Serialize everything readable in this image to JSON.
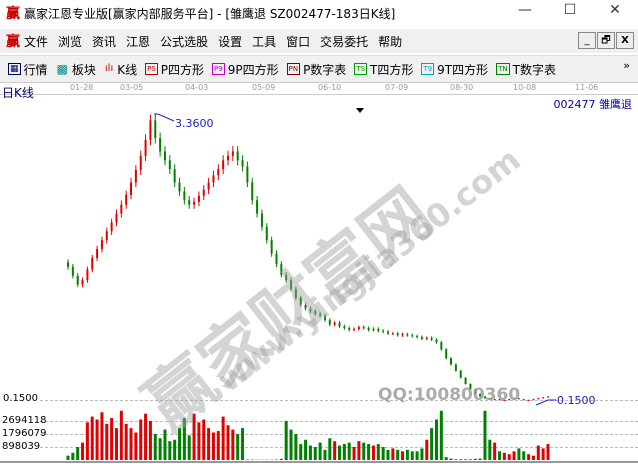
{
  "window": {
    "title": "赢家江恩专业版[赢家内部服务平台] - [雏鹰退  SZ002477-183日K线]",
    "logo": "赢",
    "minimize": "—",
    "maximize": "☐",
    "close": "✕"
  },
  "menu": {
    "items": [
      "文件",
      "浏览",
      "资讯",
      "江恩",
      "公式选股",
      "设置",
      "工具",
      "窗口",
      "交易委托",
      "帮助"
    ],
    "mdi": [
      "_",
      "🗗",
      "X"
    ]
  },
  "toolbar": {
    "items": [
      {
        "icon": "grid",
        "label": "行情"
      },
      {
        "icon": "blocks",
        "label": "板块"
      },
      {
        "icon": "kline",
        "label": "K线"
      },
      {
        "icon": "PS",
        "label": "P四方形",
        "color": "#c00000"
      },
      {
        "icon": "P9",
        "label": "9P四方形",
        "color": "#c000c0"
      },
      {
        "icon": "PN",
        "label": "P数字表",
        "color": "#800000"
      },
      {
        "icon": "TS",
        "label": "T四方形",
        "color": "#00a000"
      },
      {
        "icon": "T9",
        "label": "9T四方形",
        "color": "#00a0c0"
      },
      {
        "icon": "TN",
        "label": "T数字表",
        "color": "#008000"
      }
    ],
    "more": "»"
  },
  "chart": {
    "period_label": "日K线",
    "stock_label": "002477  雏鹰退",
    "dates": [
      "01-28",
      "03-05",
      "04-03",
      "05-09",
      "06-10",
      "07-09",
      "08-30",
      "10-08",
      "11-06"
    ],
    "high_label": "3.3600",
    "low_label": "0.1500",
    "price_axis_label": "0.1500",
    "volume_ticks": [
      "2694118",
      "1796079",
      "898039"
    ],
    "watermark": {
      "main": "赢家财富网",
      "url": "www.yingjia360.com",
      "qq": "QQ:100800360"
    },
    "colors": {
      "up": "#e00000",
      "down": "#008000",
      "label": "#2020c0"
    }
  },
  "chart_data": {
    "type": "candlestick",
    "closes": [
      1.65,
      1.55,
      1.45,
      1.5,
      1.62,
      1.75,
      1.85,
      1.95,
      2.05,
      2.15,
      2.25,
      2.35,
      2.46,
      2.6,
      2.74,
      2.9,
      3.08,
      3.3,
      3.1,
      2.95,
      2.85,
      2.75,
      2.6,
      2.5,
      2.4,
      2.35,
      2.38,
      2.45,
      2.52,
      2.6,
      2.68,
      2.75,
      2.85,
      2.9,
      2.95,
      2.85,
      2.78,
      2.6,
      2.4,
      2.25,
      2.1,
      1.95,
      1.8,
      1.68,
      1.56,
      1.5,
      1.4,
      1.3,
      1.22,
      1.18,
      1.15,
      1.12,
      1.1,
      1.05,
      1.0,
      1.02,
      0.98,
      0.96,
      0.94,
      0.95,
      0.97,
      0.96,
      0.94,
      0.95,
      0.93,
      0.92,
      0.9,
      0.9,
      0.88,
      0.89,
      0.88,
      0.87,
      0.86,
      0.84,
      0.85,
      0.83,
      0.8,
      0.72,
      0.62,
      0.55,
      0.48,
      0.4,
      0.33,
      0.27,
      0.22,
      0.19,
      0.17,
      0.16,
      0.16,
      0.15,
      0.15,
      0.16,
      0.17,
      0.16,
      0.15,
      0.15,
      0.16,
      0.17,
      0.18,
      0.19
    ],
    "volumes": [
      300000,
      500000,
      900000,
      1200000,
      2600000,
      3000000,
      2800000,
      3300000,
      2500000,
      2900000,
      2200000,
      3400000,
      2500000,
      2200000,
      1900000,
      2800000,
      3200000,
      2700000,
      1800000,
      1500000,
      2100000,
      1300000,
      1400000,
      2200000,
      2900000,
      1700000,
      3200000,
      2600000,
      2800000,
      2200000,
      1900000,
      2000000,
      3000000,
      2400000,
      2100000,
      1800000,
      2200000,
      30000,
      30000,
      20000,
      20000,
      20000,
      20000,
      30000,
      80000,
      2700000,
      2100000,
      1800000,
      1100000,
      1400000,
      1000000,
      900000,
      1200000,
      700000,
      1500000,
      1300000,
      1000000,
      1100000,
      1200000,
      900000,
      1300000,
      1200000,
      1100000,
      1000000,
      1100000,
      900000,
      700000,
      800000,
      700000,
      600000,
      700000,
      600000,
      600000,
      800000,
      1400000,
      2200000,
      2800000,
      3400000,
      200000,
      100000,
      50000,
      50000,
      50000,
      50000,
      80000,
      100000,
      3400000,
      1400000,
      1200000,
      600000,
      500000,
      400000,
      600000,
      800000,
      600000,
      400000,
      300000,
      1000000,
      800000,
      1100000
    ],
    "ylim": [
      0.15,
      3.36
    ]
  }
}
